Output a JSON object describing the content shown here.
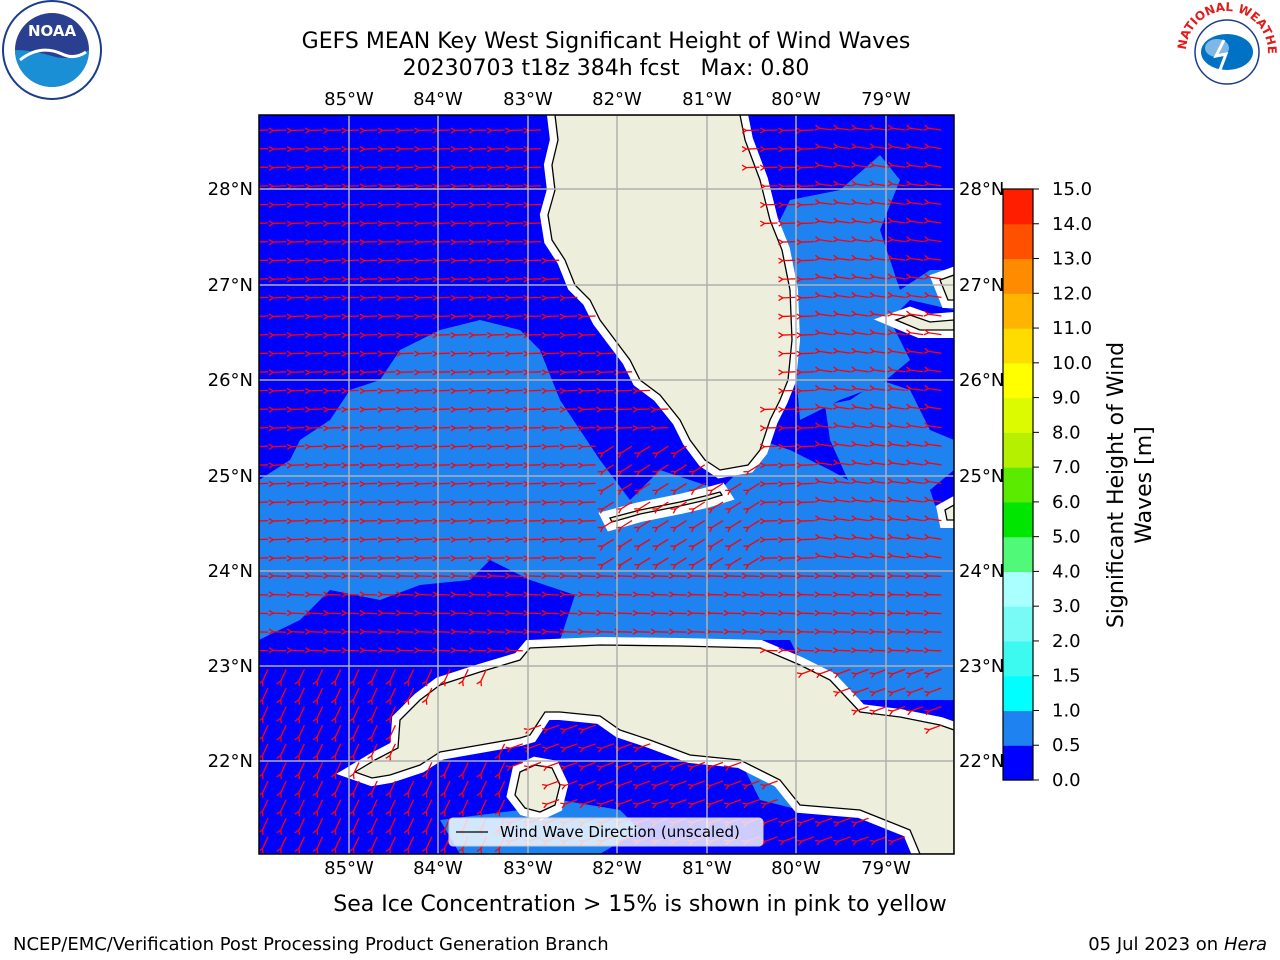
{
  "header": {
    "title_line1": "GEFS MEAN Key West Significant Height of Wind Waves",
    "title_line2": "20230703 t18z 384h fcst   Max: 0.80"
  },
  "logos": {
    "left_name": "NOAA",
    "right_text": "NATIONAL WEATHER SERVICE"
  },
  "map": {
    "lon_ticks": [
      "85°W",
      "84°W",
      "83°W",
      "82°W",
      "81°W",
      "80°W",
      "79°W"
    ],
    "lat_ticks": [
      "28°N",
      "27°N",
      "26°N",
      "25°N",
      "24°N",
      "23°N",
      "22°N"
    ],
    "legend_label": "Wind Wave Direction (unscaled)",
    "colors": {
      "ocean_low": "#0000ff",
      "ocean_mid": "#1e82f0",
      "land": "#eeeedd",
      "arrow": "#ff0000",
      "grid": "#b0b0b0"
    }
  },
  "colorbar": {
    "label_line1": "Significant Height of Wind",
    "label_line2": "Waves [m]",
    "tick_labels": [
      "0.0",
      "0.5",
      "1.0",
      "1.5",
      "2.0",
      "3.0",
      "4.0",
      "5.0",
      "6.0",
      "7.0",
      "8.0",
      "9.0",
      "10.0",
      "11.0",
      "12.0",
      "13.0",
      "14.0",
      "15.0"
    ],
    "colors": [
      "#0000ff",
      "#1e82f0",
      "#00ffff",
      "#3cfaf0",
      "#78faf5",
      "#aaffff",
      "#50fa78",
      "#00e600",
      "#5aeb00",
      "#b4f000",
      "#dcfa00",
      "#ffff00",
      "#ffdc00",
      "#ffb400",
      "#ff8c00",
      "#ff5000",
      "#ff1e00",
      "#ff0000"
    ]
  },
  "footer": {
    "note": "Sea Ice Concentration > 15% is shown in pink to yellow",
    "left": "NCEP/EMC/Verification Post Processing Product Generation Branch",
    "right_date": "05 Jul 2023 on ",
    "right_host": "Hera"
  }
}
